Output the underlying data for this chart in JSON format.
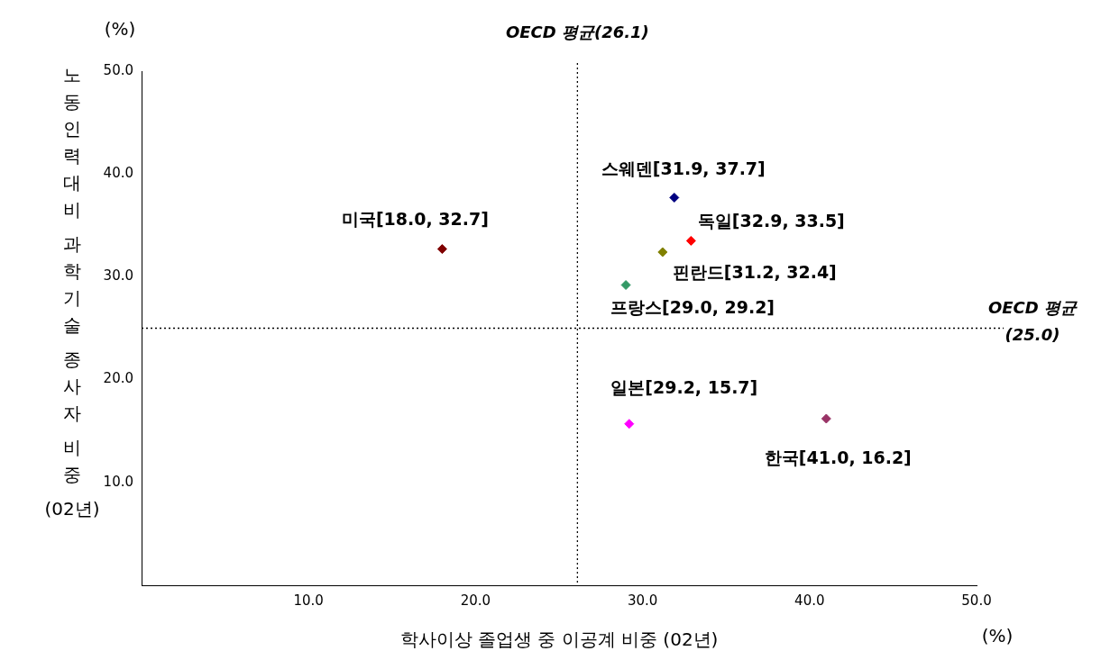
{
  "chart_data": {
    "type": "scatter",
    "xlabel": "학사이상 졸업생 중 이공계 비중 (02년)",
    "ylabel": "노동인력대비 과학기술 종사자 비중 (02년)",
    "x": [
      18.0,
      31.9,
      32.9,
      31.2,
      29.0,
      29.2,
      41.0
    ],
    "values": [
      32.7,
      37.7,
      33.5,
      32.4,
      29.2,
      15.7,
      16.2
    ],
    "colors": [
      "#800000",
      "#000080",
      "#ff0000",
      "#808000",
      "#339966",
      "#ff00ff",
      "#993366"
    ],
    "value_labels": [
      "미국[18.0, 32.7]",
      "스웨덴[31.9, 37.7]",
      "독일[32.9, 33.5]",
      "핀란드[31.2, 32.4]",
      "프랑스[29.0, 29.2]",
      "일본[29.2, 15.7]",
      "한국[41.0, 16.2]"
    ],
    "xlim": [
      0,
      50
    ],
    "ylim": [
      0,
      50
    ],
    "xticks": [
      {
        "value": 10,
        "label": "10.0"
      },
      {
        "value": 20,
        "label": "20.0"
      },
      {
        "value": 30,
        "label": "30.0"
      },
      {
        "value": 40,
        "label": "40.0"
      },
      {
        "value": 50,
        "label": "50.0"
      }
    ],
    "yticks": [
      {
        "value": 10,
        "label": "10.0"
      },
      {
        "value": 20,
        "label": "20.0"
      },
      {
        "value": 30,
        "label": "30.0"
      },
      {
        "value": 40,
        "label": "40.0"
      },
      {
        "value": 50,
        "label": "50.0"
      }
    ],
    "ref_lines": [
      {
        "axis": "x",
        "value": 26.1,
        "label": "OECD 평균(26.1)",
        "color": "#000000",
        "line_style": "dotted"
      },
      {
        "axis": "y",
        "value": 25.0,
        "label": "OECD 평균\n(25.0)",
        "color": "#000000",
        "line_style": "dotted"
      }
    ],
    "annotations": [
      "(%)",
      "(%)"
    ],
    "marker": "diamond",
    "grid": false,
    "legend": false
  }
}
